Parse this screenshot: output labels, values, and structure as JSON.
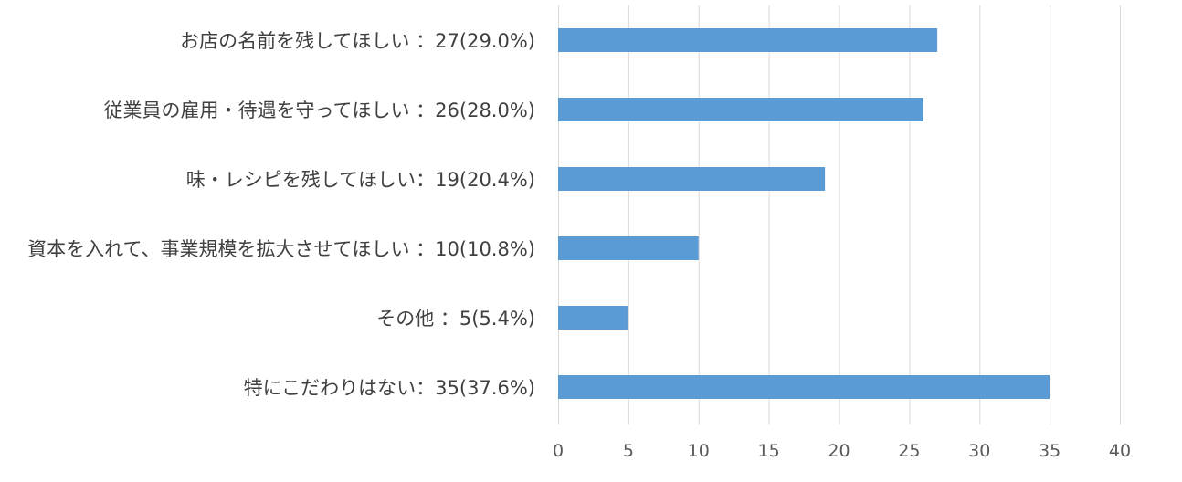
{
  "chart_data": {
    "type": "bar",
    "orientation": "horizontal",
    "categories": [
      "お店の名前を残してほしい ：27(29.0%)",
      "従業員の雇用・待遇を守ってほしい ：26(28.0%)",
      "味・レシピを残してほしい：19(20.4%)",
      "資本を入れて、事業規模を拡大させてほしい ：10(10.8%)",
      "その他 ：5(5.4%)",
      "特にこだわりはない：35(37.6%)"
    ],
    "values": [
      27,
      26,
      19,
      10,
      5,
      35
    ],
    "xlim": [
      0,
      40
    ],
    "xticks": [
      0,
      5,
      10,
      15,
      20,
      25,
      30,
      35,
      40
    ],
    "bar_color": "#5b9bd5",
    "grid": true,
    "title": "",
    "xlabel": "",
    "ylabel": ""
  }
}
